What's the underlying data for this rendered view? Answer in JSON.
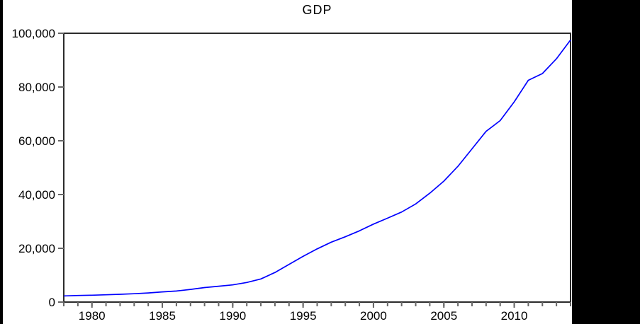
{
  "window": {
    "outer_background": "#000000",
    "canvas_background": "#ffffff"
  },
  "chart_data": {
    "type": "line",
    "title": "GDP",
    "xlabel": "",
    "ylabel": "",
    "xlim": [
      1978,
      2014
    ],
    "ylim": [
      0,
      100000
    ],
    "grid": false,
    "legend_position": "none",
    "line_color": "#0000ff",
    "frame_color": "#2b2b2b",
    "tick_color": "#666666",
    "x": [
      1978,
      1979,
      1980,
      1981,
      1982,
      1983,
      1984,
      1985,
      1986,
      1987,
      1988,
      1989,
      1990,
      1991,
      1992,
      1993,
      1994,
      1995,
      1996,
      1997,
      1998,
      1999,
      2000,
      2001,
      2002,
      2003,
      2004,
      2005,
      2006,
      2007,
      2008,
      2009,
      2010,
      2011,
      2012,
      2013,
      2014
    ],
    "series": [
      {
        "name": "GDP",
        "values": [
          2300,
          2450,
          2550,
          2700,
          2900,
          3100,
          3400,
          3800,
          4100,
          4700,
          5400,
          5900,
          6400,
          7300,
          8600,
          11000,
          14000,
          17000,
          19800,
          22300,
          24300,
          26500,
          29000,
          31200,
          33500,
          36500,
          40500,
          45000,
          50500,
          57000,
          63500,
          67500,
          74500,
          82500,
          85000,
          90500,
          97500
        ]
      }
    ],
    "y_ticks": [
      {
        "value": 0,
        "label": "0"
      },
      {
        "value": 20000,
        "label": "20,000"
      },
      {
        "value": 40000,
        "label": "40,000"
      },
      {
        "value": 60000,
        "label": "60,000"
      },
      {
        "value": 80000,
        "label": "80,000"
      },
      {
        "value": 100000,
        "label": "100,000"
      }
    ],
    "x_ticks_labeled": [
      {
        "value": 1980,
        "label": "1980"
      },
      {
        "value": 1985,
        "label": "1985"
      },
      {
        "value": 1990,
        "label": "1990"
      },
      {
        "value": 1995,
        "label": "1995"
      },
      {
        "value": 2000,
        "label": "2000"
      },
      {
        "value": 2005,
        "label": "2005"
      },
      {
        "value": 2010,
        "label": "2010"
      }
    ],
    "minor_x_ticks_every_years": 1
  }
}
